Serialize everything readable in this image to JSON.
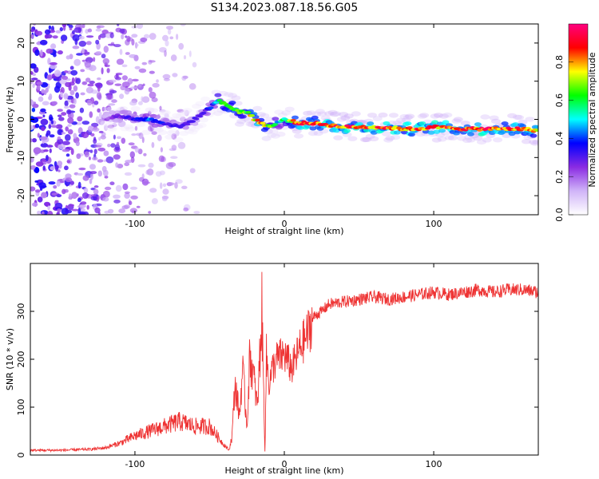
{
  "title": "S134.2023.087.18.56.G05",
  "colors": {
    "snr_line": "#ee3333",
    "frame": "#000000"
  },
  "colormap": [
    "#ffffff",
    "#d0b4f8",
    "#8a2be2",
    "#0000ff",
    "#00ffff",
    "#00ff00",
    "#ffff00",
    "#ff0000",
    "#ff007f"
  ],
  "chart_data": [
    {
      "type": "heatmap",
      "title": "S134.2023.087.18.56.G05",
      "xlabel": "Height of straight line (km)",
      "ylabel": "Frequency (Hz)",
      "xlim": [
        -170,
        170
      ],
      "ylim": [
        -25,
        25
      ],
      "x_ticks": [
        -100,
        0,
        100
      ],
      "x_tick_labels": [
        "-100",
        "0",
        "100"
      ],
      "y_ticks": [
        -20,
        -10,
        0,
        10,
        20
      ],
      "y_tick_labels": [
        "-20",
        "-10",
        "0",
        "10",
        "20"
      ],
      "colorbar": {
        "label": "Normalized spectral amplitude",
        "range": [
          0,
          1
        ],
        "ticks": [
          0.0,
          0.2,
          0.4,
          0.6,
          0.8
        ],
        "tick_labels": [
          "0.0",
          "0.2",
          "0.4",
          "0.6",
          "0.8"
        ]
      },
      "ridge": {
        "x": [
          -120,
          -110,
          -100,
          -90,
          -80,
          -70,
          -60,
          -50,
          -45,
          -40,
          -35,
          -30,
          -25,
          -20,
          -15,
          -10,
          -5,
          0,
          10,
          20,
          40,
          60,
          80,
          90,
          100,
          120,
          140,
          160,
          170
        ],
        "frequency": [
          0,
          1,
          0,
          0,
          -1,
          -2,
          0,
          3,
          5,
          4,
          3,
          2,
          2,
          0,
          -1,
          -2,
          -1,
          0,
          -1,
          -1,
          -2,
          -2,
          -2.5,
          -2.5,
          -2,
          -2.5,
          -2.5,
          -2.5,
          -3
        ],
        "amplitude": [
          0.2,
          0.3,
          0.35,
          0.45,
          0.35,
          0.3,
          0.3,
          0.35,
          0.5,
          0.65,
          0.7,
          0.75,
          0.7,
          0.8,
          0.8,
          0.75,
          0.5,
          0.6,
          0.9,
          0.85,
          0.9,
          0.9,
          0.85,
          0.9,
          0.9,
          0.9,
          0.9,
          0.85,
          0.8
        ]
      },
      "noise_region_x": [
        -170,
        -55
      ]
    },
    {
      "type": "line",
      "xlabel": "Height of straight line (km)",
      "ylabel": "SNR (10 * v/v)",
      "xlim": [
        -170,
        170
      ],
      "ylim": [
        0,
        400
      ],
      "x_ticks": [
        -100,
        0,
        100
      ],
      "x_tick_labels": [
        "-100",
        "0",
        "100"
      ],
      "y_ticks": [
        0,
        100,
        200,
        300
      ],
      "y_tick_labels": [
        "0",
        "100",
        "200",
        "300"
      ],
      "series": [
        {
          "x": [
            -170,
            -150,
            -130,
            -120,
            -110,
            -100,
            -90,
            -80,
            -70,
            -60,
            -50,
            -45,
            -40,
            -37,
            -35,
            -33,
            -30,
            -28,
            -25,
            -23,
            -20,
            -18,
            -15,
            -13,
            -12,
            -10,
            -8,
            -5,
            0,
            5,
            10,
            15,
            20,
            25,
            30,
            40,
            50,
            60,
            70,
            80,
            90,
            100,
            110,
            120,
            130,
            140,
            150,
            160,
            170
          ],
          "y": [
            10,
            10,
            12,
            15,
            25,
            40,
            50,
            60,
            70,
            60,
            60,
            40,
            20,
            10,
            40,
            150,
            80,
            180,
            60,
            210,
            150,
            100,
            300,
            10,
            200,
            150,
            180,
            200,
            210,
            180,
            220,
            250,
            290,
            300,
            315,
            320,
            325,
            330,
            325,
            330,
            335,
            340,
            335,
            340,
            345,
            340,
            345,
            345,
            340
          ]
        }
      ]
    }
  ]
}
